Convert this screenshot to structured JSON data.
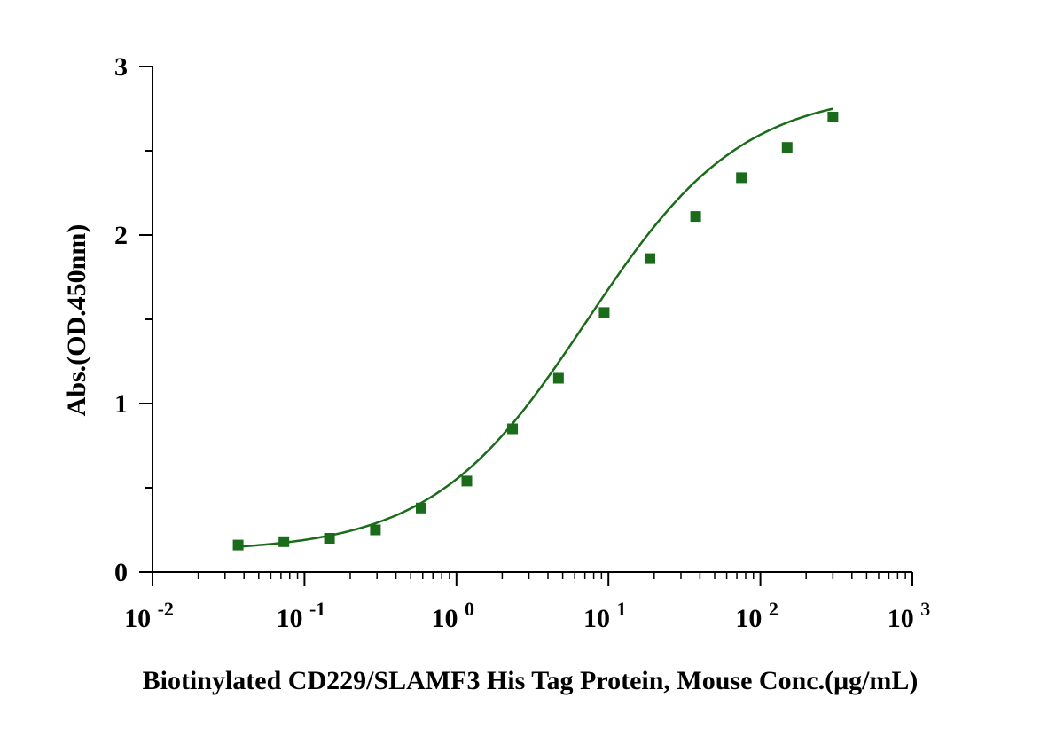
{
  "chart_data": {
    "type": "scatter",
    "title": "",
    "xlabel": "Biotinylated CD229/SLAMF3 His Tag Protein, Mouse Conc.(μg/mL)",
    "ylabel": "Abs.(OD.450nm)",
    "x_scale": "log",
    "xlim": [
      0.01,
      1000
    ],
    "ylim": [
      0,
      3
    ],
    "x_ticks": [
      {
        "base": "10",
        "exp": "-2"
      },
      {
        "base": "10",
        "exp": "-1"
      },
      {
        "base": "10",
        "exp": "0"
      },
      {
        "base": "10",
        "exp": "1"
      },
      {
        "base": "10",
        "exp": "2"
      },
      {
        "base": "10",
        "exp": "3"
      }
    ],
    "y_ticks": [
      "0",
      "1",
      "2",
      "3"
    ],
    "grid": false,
    "series": [
      {
        "color": "#1a6b1a",
        "marker": "square",
        "fit": "4PL sigmoid",
        "x": [
          0.0366,
          0.0732,
          0.146,
          0.293,
          0.586,
          1.17,
          2.34,
          4.69,
          9.38,
          18.75,
          37.5,
          75,
          150,
          300
        ],
        "y": [
          0.16,
          0.18,
          0.2,
          0.25,
          0.38,
          0.54,
          0.85,
          1.15,
          1.54,
          1.86,
          2.11,
          2.34,
          2.52,
          2.7
        ]
      }
    ]
  }
}
